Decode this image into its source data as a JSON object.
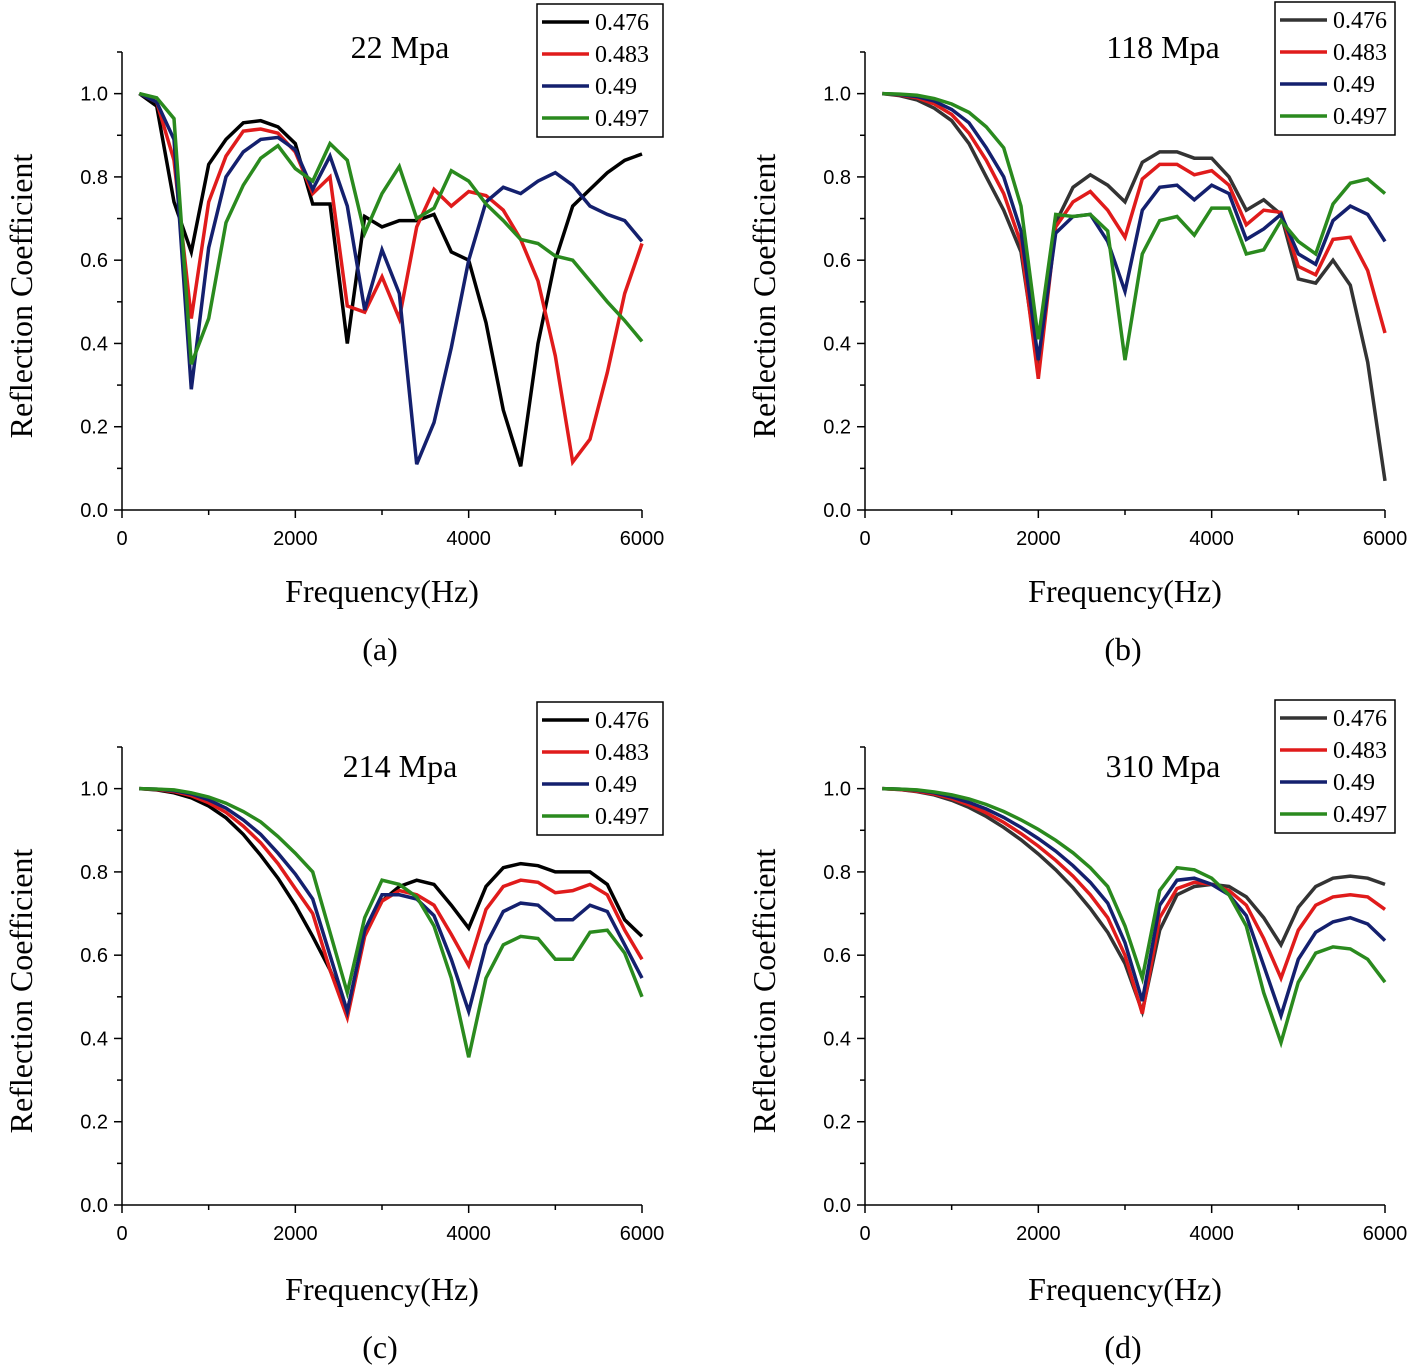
{
  "chart_data": [
    {
      "type": "line",
      "title": "22 Mpa",
      "panel_label": "(a)",
      "xlabel": "Frequency(Hz)",
      "ylabel": "Reflection Coefficient",
      "xlim": [
        0,
        6000
      ],
      "ylim": [
        0,
        1.1
      ],
      "xticks": [
        0,
        2000,
        4000,
        6000
      ],
      "yticks": [
        0.0,
        0.2,
        0.4,
        0.6,
        0.8,
        1.0
      ],
      "legend_position": "top-right",
      "x": [
        200,
        400,
        600,
        800,
        1000,
        1200,
        1400,
        1600,
        1800,
        2000,
        2200,
        2400,
        2600,
        2800,
        3000,
        3200,
        3400,
        3600,
        3800,
        4000,
        4200,
        4400,
        4600,
        4800,
        5000,
        5200,
        5400,
        5600,
        5800,
        6000
      ],
      "series": [
        {
          "name": "0.476",
          "color": "#000000",
          "values": [
            1.0,
            0.97,
            0.74,
            0.62,
            0.83,
            0.89,
            0.93,
            0.935,
            0.92,
            0.88,
            0.735,
            0.735,
            0.4,
            0.705,
            0.68,
            0.695,
            0.695,
            0.71,
            0.62,
            0.6,
            0.45,
            0.24,
            0.105,
            0.4,
            0.6,
            0.73,
            0.77,
            0.81,
            0.84,
            0.855
          ]
        },
        {
          "name": "0.483",
          "color": "#e01b1b",
          "values": [
            1.0,
            0.98,
            0.84,
            0.46,
            0.74,
            0.85,
            0.91,
            0.915,
            0.905,
            0.86,
            0.76,
            0.8,
            0.49,
            0.475,
            0.56,
            0.46,
            0.68,
            0.77,
            0.73,
            0.765,
            0.755,
            0.72,
            0.65,
            0.55,
            0.37,
            0.115,
            0.17,
            0.33,
            0.52,
            0.64
          ]
        },
        {
          "name": "0.49",
          "color": "#14206e",
          "values": [
            1.0,
            0.98,
            0.89,
            0.29,
            0.63,
            0.8,
            0.86,
            0.89,
            0.895,
            0.865,
            0.77,
            0.85,
            0.73,
            0.48,
            0.625,
            0.52,
            0.11,
            0.21,
            0.39,
            0.6,
            0.74,
            0.775,
            0.76,
            0.79,
            0.81,
            0.78,
            0.73,
            0.71,
            0.695,
            0.645
          ]
        },
        {
          "name": "0.497",
          "color": "#2a8a1e",
          "values": [
            1.0,
            0.99,
            0.94,
            0.35,
            0.46,
            0.69,
            0.78,
            0.845,
            0.875,
            0.82,
            0.79,
            0.88,
            0.84,
            0.665,
            0.76,
            0.825,
            0.7,
            0.725,
            0.815,
            0.79,
            0.735,
            0.695,
            0.65,
            0.64,
            0.61,
            0.6,
            0.55,
            0.5,
            0.455,
            0.405
          ]
        }
      ]
    },
    {
      "type": "line",
      "title": "118 Mpa",
      "panel_label": "(b)",
      "xlabel": "Frequency(Hz)",
      "ylabel": "Reflection Coefficient",
      "xlim": [
        0,
        6000
      ],
      "ylim": [
        0,
        1.1
      ],
      "xticks": [
        0,
        2000,
        4000,
        6000
      ],
      "yticks": [
        0.0,
        0.2,
        0.4,
        0.6,
        0.8,
        1.0
      ],
      "legend_position": "top-right",
      "x": [
        200,
        400,
        600,
        800,
        1000,
        1200,
        1400,
        1600,
        1800,
        2000,
        2200,
        2400,
        2600,
        2800,
        3000,
        3200,
        3400,
        3600,
        3800,
        4000,
        4200,
        4400,
        4600,
        4800,
        5000,
        5200,
        5400,
        5600,
        5800,
        6000
      ],
      "series": [
        {
          "name": "0.476",
          "color": "#333333",
          "values": [
            1.0,
            0.995,
            0.985,
            0.965,
            0.935,
            0.88,
            0.8,
            0.72,
            0.62,
            0.34,
            0.69,
            0.775,
            0.805,
            0.78,
            0.74,
            0.835,
            0.86,
            0.86,
            0.845,
            0.845,
            0.8,
            0.72,
            0.745,
            0.71,
            0.555,
            0.545,
            0.6,
            0.54,
            0.355,
            0.07
          ]
        },
        {
          "name": "0.483",
          "color": "#e01b1b",
          "values": [
            1.0,
            0.997,
            0.99,
            0.975,
            0.95,
            0.905,
            0.84,
            0.76,
            0.64,
            0.315,
            0.68,
            0.74,
            0.765,
            0.72,
            0.655,
            0.795,
            0.83,
            0.83,
            0.805,
            0.815,
            0.78,
            0.685,
            0.72,
            0.715,
            0.585,
            0.565,
            0.65,
            0.655,
            0.575,
            0.425
          ]
        },
        {
          "name": "0.49",
          "color": "#14206e",
          "values": [
            1.0,
            0.998,
            0.993,
            0.982,
            0.962,
            0.93,
            0.87,
            0.8,
            0.67,
            0.36,
            0.665,
            0.705,
            0.71,
            0.645,
            0.525,
            0.72,
            0.775,
            0.78,
            0.745,
            0.78,
            0.76,
            0.65,
            0.675,
            0.71,
            0.615,
            0.59,
            0.695,
            0.73,
            0.71,
            0.645
          ]
        },
        {
          "name": "0.497",
          "color": "#2a8a1e",
          "values": [
            1.0,
            0.999,
            0.996,
            0.988,
            0.975,
            0.955,
            0.92,
            0.87,
            0.73,
            0.41,
            0.71,
            0.705,
            0.71,
            0.67,
            0.36,
            0.615,
            0.695,
            0.705,
            0.66,
            0.725,
            0.725,
            0.615,
            0.625,
            0.695,
            0.645,
            0.615,
            0.735,
            0.785,
            0.795,
            0.76
          ]
        }
      ]
    },
    {
      "type": "line",
      "title": "214 Mpa",
      "panel_label": "(c)",
      "xlabel": "Frequency(Hz)",
      "ylabel": "Reflection Coefficient",
      "xlim": [
        0,
        6000
      ],
      "ylim": [
        0,
        1.1
      ],
      "xticks": [
        0,
        2000,
        4000,
        6000
      ],
      "yticks": [
        0.0,
        0.2,
        0.4,
        0.6,
        0.8,
        1.0
      ],
      "legend_position": "top-right",
      "x": [
        200,
        400,
        600,
        800,
        1000,
        1200,
        1400,
        1600,
        1800,
        2000,
        2200,
        2400,
        2600,
        2800,
        3000,
        3200,
        3400,
        3600,
        3800,
        4000,
        4200,
        4400,
        4600,
        4800,
        5000,
        5200,
        5400,
        5600,
        5800,
        6000
      ],
      "series": [
        {
          "name": "0.476",
          "color": "#000000",
          "values": [
            1.0,
            0.997,
            0.99,
            0.978,
            0.958,
            0.93,
            0.89,
            0.84,
            0.785,
            0.72,
            0.645,
            0.565,
            0.465,
            0.65,
            0.73,
            0.765,
            0.78,
            0.77,
            0.72,
            0.665,
            0.765,
            0.81,
            0.82,
            0.815,
            0.8,
            0.8,
            0.8,
            0.77,
            0.685,
            0.645
          ]
        },
        {
          "name": "0.483",
          "color": "#e01b1b",
          "values": [
            1.0,
            0.998,
            0.993,
            0.983,
            0.966,
            0.943,
            0.91,
            0.87,
            0.82,
            0.76,
            0.7,
            0.565,
            0.45,
            0.645,
            0.73,
            0.755,
            0.745,
            0.72,
            0.65,
            0.575,
            0.71,
            0.765,
            0.78,
            0.775,
            0.75,
            0.755,
            0.77,
            0.745,
            0.66,
            0.59
          ]
        },
        {
          "name": "0.49",
          "color": "#14206e",
          "values": [
            1.0,
            0.999,
            0.995,
            0.987,
            0.973,
            0.953,
            0.925,
            0.89,
            0.845,
            0.795,
            0.735,
            0.6,
            0.465,
            0.66,
            0.745,
            0.745,
            0.735,
            0.695,
            0.59,
            0.465,
            0.625,
            0.705,
            0.725,
            0.72,
            0.685,
            0.685,
            0.72,
            0.705,
            0.625,
            0.545
          ]
        },
        {
          "name": "0.497",
          "color": "#2a8a1e",
          "values": [
            1.0,
            0.999,
            0.997,
            0.99,
            0.98,
            0.965,
            0.945,
            0.92,
            0.885,
            0.845,
            0.8,
            0.655,
            0.51,
            0.69,
            0.78,
            0.77,
            0.74,
            0.67,
            0.545,
            0.355,
            0.545,
            0.625,
            0.645,
            0.64,
            0.59,
            0.59,
            0.655,
            0.66,
            0.605,
            0.5
          ]
        }
      ]
    },
    {
      "type": "line",
      "title": "310 Mpa",
      "panel_label": "(d)",
      "xlabel": "Frequency(Hz)",
      "ylabel": "Reflection Coefficient",
      "xlim": [
        0,
        6000
      ],
      "ylim": [
        0,
        1.1
      ],
      "xticks": [
        0,
        2000,
        4000,
        6000
      ],
      "yticks": [
        0.0,
        0.2,
        0.4,
        0.6,
        0.8,
        1.0
      ],
      "legend_position": "top-right",
      "x": [
        200,
        400,
        600,
        800,
        1000,
        1200,
        1400,
        1600,
        1800,
        2000,
        2200,
        2400,
        2600,
        2800,
        3000,
        3200,
        3400,
        3600,
        3800,
        4000,
        4200,
        4400,
        4600,
        4800,
        5000,
        5200,
        5400,
        5600,
        5800,
        6000
      ],
      "series": [
        {
          "name": "0.476",
          "color": "#333333",
          "values": [
            1.0,
            0.998,
            0.993,
            0.985,
            0.972,
            0.955,
            0.933,
            0.907,
            0.877,
            0.843,
            0.805,
            0.762,
            0.712,
            0.655,
            0.58,
            0.465,
            0.66,
            0.745,
            0.765,
            0.77,
            0.765,
            0.74,
            0.69,
            0.625,
            0.715,
            0.765,
            0.785,
            0.79,
            0.785,
            0.77
          ]
        },
        {
          "name": "0.483",
          "color": "#e01b1b",
          "values": [
            1.0,
            0.998,
            0.994,
            0.987,
            0.976,
            0.961,
            0.942,
            0.919,
            0.892,
            0.862,
            0.828,
            0.79,
            0.745,
            0.69,
            0.6,
            0.46,
            0.69,
            0.76,
            0.775,
            0.77,
            0.755,
            0.72,
            0.64,
            0.545,
            0.66,
            0.72,
            0.74,
            0.745,
            0.74,
            0.71
          ]
        },
        {
          "name": "0.49",
          "color": "#14206e",
          "values": [
            1.0,
            0.999,
            0.996,
            0.99,
            0.98,
            0.967,
            0.951,
            0.931,
            0.907,
            0.88,
            0.85,
            0.815,
            0.775,
            0.725,
            0.63,
            0.49,
            0.72,
            0.78,
            0.785,
            0.77,
            0.745,
            0.695,
            0.575,
            0.455,
            0.59,
            0.655,
            0.68,
            0.69,
            0.675,
            0.635
          ]
        },
        {
          "name": "0.497",
          "color": "#2a8a1e",
          "values": [
            1.0,
            0.999,
            0.997,
            0.992,
            0.985,
            0.975,
            0.962,
            0.945,
            0.925,
            0.902,
            0.876,
            0.846,
            0.81,
            0.765,
            0.67,
            0.545,
            0.755,
            0.81,
            0.805,
            0.785,
            0.745,
            0.67,
            0.51,
            0.39,
            0.535,
            0.605,
            0.62,
            0.615,
            0.59,
            0.535
          ]
        }
      ]
    }
  ]
}
